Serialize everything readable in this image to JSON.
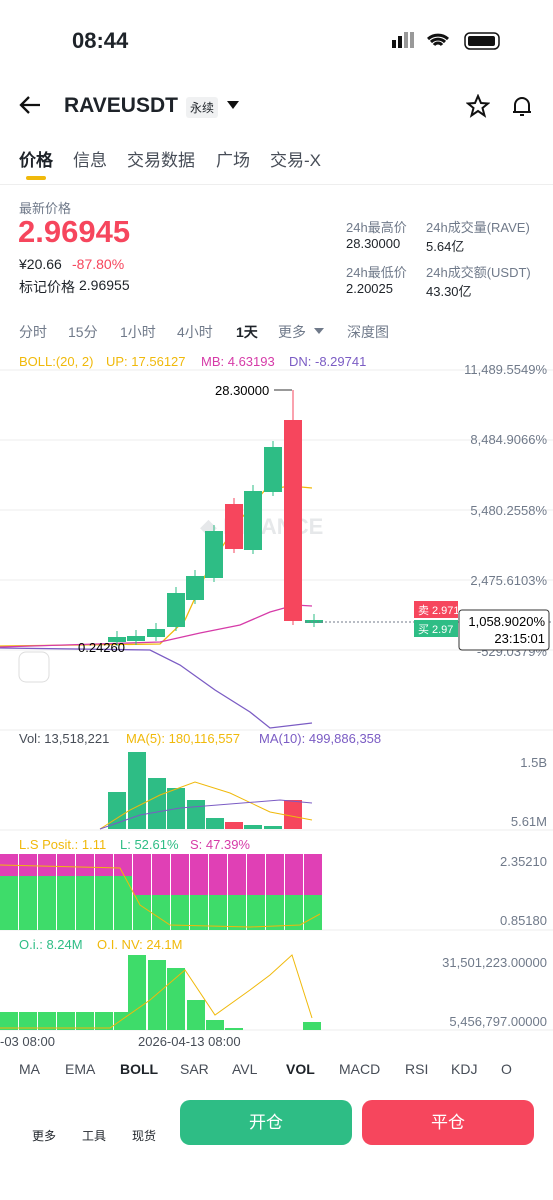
{
  "status": {
    "time": "08:44"
  },
  "header": {
    "symbol": "RAVEUSDT",
    "tag": "永续"
  },
  "tabs": [
    "价格",
    "信息",
    "交易数据",
    "广场",
    "交易-X"
  ],
  "price": {
    "label": "最新价格",
    "last": "2.96945",
    "cny": "¥20.66",
    "change": "-87.80%",
    "mark_label": "标记价格",
    "mark": "2.96955"
  },
  "stats": [
    {
      "label": "24h最高价",
      "value": "28.30000"
    },
    {
      "label": "24h成交量(RAVE)",
      "value": "5.64亿"
    },
    {
      "label": "24h最低价",
      "value": "2.20025"
    },
    {
      "label": "24h成交额(USDT)",
      "value": "43.30亿"
    }
  ],
  "intervals": [
    "分时",
    "15分",
    "1小时",
    "4小时",
    "1天",
    "更多",
    "深度图"
  ],
  "boll": {
    "title": "BOLL:(20, 2)",
    "up": "UP: 17.56127",
    "mb": "MB: 4.63193",
    "dn": "DN: -8.29741"
  },
  "main_axis": [
    "11,489.5549%",
    "8,484.9066%",
    "5,480.2558%",
    "2,475.6103%",
    "-529.0379%"
  ],
  "high_label": "28.30000",
  "low_label": "0.24260",
  "sell": {
    "label": "卖",
    "value": "2.9712"
  },
  "buy": {
    "label": "买",
    "value": "2.97"
  },
  "current": {
    "pct": "1,058.9020%",
    "countdown": "23:15:01"
  },
  "vol": {
    "title": "Vol: 13,518,221",
    "ma5": "MA(5): 180,116,557",
    "ma10": "MA(10): 499,886,358",
    "axis": [
      "1.5B",
      "5.61M"
    ]
  },
  "ls": {
    "title": "L.S Posit.: 1.11",
    "l": "L: 52.61%",
    "s": "S: 47.39%",
    "axis": [
      "2.35210",
      "0.85180"
    ]
  },
  "oi": {
    "title": "O.i.: 8.24M",
    "nv": "O.I. NV: 24.1M",
    "axis": [
      "31,501,223.00000",
      "5,456,797.00000"
    ]
  },
  "x_axis": [
    "-03 08:00",
    "2026-04-13 08:00"
  ],
  "indicators": [
    "MA",
    "EMA",
    "BOLL",
    "SAR",
    "AVL",
    "VOL",
    "MACD",
    "RSI",
    "KDJ",
    "O"
  ],
  "bottom": {
    "tools": [
      "更多",
      "工具",
      "现货"
    ],
    "open": "开仓",
    "close": "平仓"
  }
}
